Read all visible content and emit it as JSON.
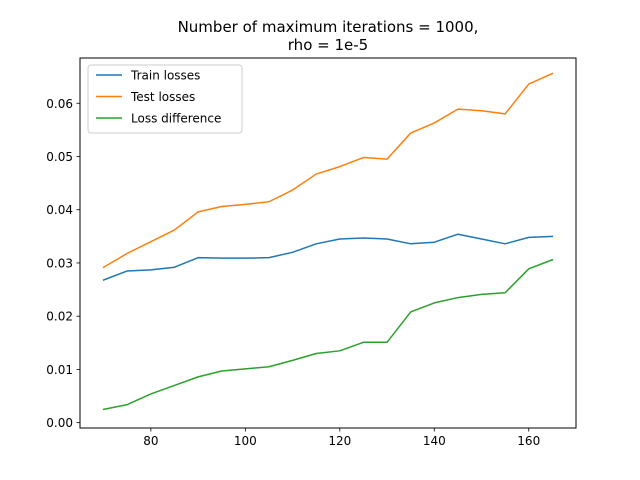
{
  "chart_data": {
    "type": "line",
    "title_lines": [
      "Number of maximum iterations = 1000,",
      "rho = 1e-5"
    ],
    "xlabel": "",
    "ylabel": "",
    "xlim": [
      65,
      170
    ],
    "ylim": [
      -0.001,
      0.0685
    ],
    "xticks": [
      80,
      100,
      120,
      140,
      160
    ],
    "yticks": [
      0.0,
      0.01,
      0.02,
      0.03,
      0.04,
      0.05,
      0.06
    ],
    "ytick_labels": [
      "0.00",
      "0.01",
      "0.02",
      "0.03",
      "0.04",
      "0.05",
      "0.06"
    ],
    "grid": false,
    "legend_position": "top-left",
    "x": [
      70,
      75,
      80,
      85,
      90,
      95,
      100,
      105,
      110,
      115,
      120,
      125,
      130,
      135,
      140,
      145,
      150,
      155,
      160,
      165
    ],
    "series": [
      {
        "name": "Train losses",
        "color": "#1f77b4",
        "values": [
          0.0268,
          0.0285,
          0.0287,
          0.0292,
          0.031,
          0.0309,
          0.0309,
          0.031,
          0.032,
          0.0336,
          0.0345,
          0.0347,
          0.0345,
          0.0336,
          0.0339,
          0.0354,
          0.0345,
          0.0336,
          0.0348,
          0.035
        ]
      },
      {
        "name": "Test losses",
        "color": "#ff7f0e",
        "values": [
          0.0292,
          0.0318,
          0.034,
          0.0362,
          0.0396,
          0.0406,
          0.041,
          0.0415,
          0.0437,
          0.0467,
          0.0481,
          0.0498,
          0.0495,
          0.0544,
          0.0563,
          0.0589,
          0.0586,
          0.058,
          0.0636,
          0.0656
        ]
      },
      {
        "name": "Loss difference",
        "color": "#2ca02c",
        "values": [
          0.0025,
          0.0034,
          0.0054,
          0.007,
          0.0086,
          0.0097,
          0.0101,
          0.0105,
          0.0117,
          0.013,
          0.0135,
          0.0151,
          0.0151,
          0.0208,
          0.0225,
          0.0235,
          0.0241,
          0.0244,
          0.0289,
          0.0306
        ]
      }
    ]
  }
}
